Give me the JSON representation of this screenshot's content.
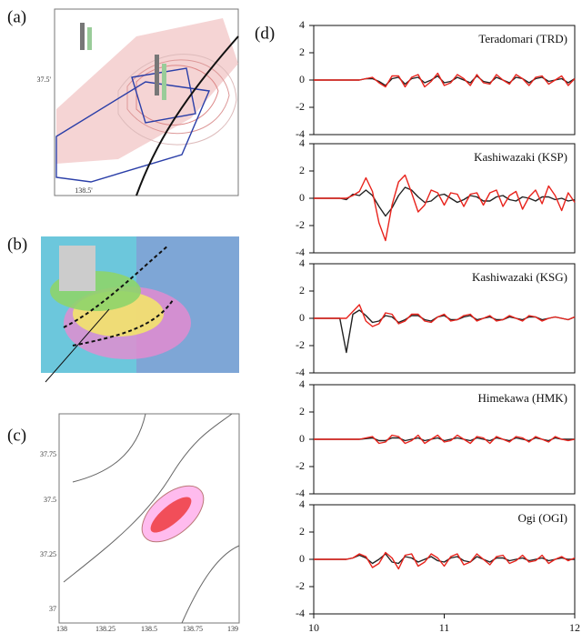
{
  "panels": {
    "a": {
      "label": "(a)",
      "lat_label": "37.5'",
      "lon_label": "138.5'"
    },
    "b": {
      "label": "(b)"
    },
    "c": {
      "label": "(c)",
      "lat_labels": [
        "37.75",
        "37.5",
        "37.25",
        "37"
      ],
      "lon_labels": [
        "138",
        "138.25",
        "138.5",
        "138.75",
        "139"
      ]
    },
    "d": {
      "label": "(d)"
    }
  },
  "chart_data": [
    {
      "type": "line",
      "title": "Teradomari (TRD)",
      "x": [
        10,
        10.05,
        10.1,
        10.15,
        10.2,
        10.25,
        10.3,
        10.35,
        10.4,
        10.45,
        10.5,
        10.55,
        10.6,
        10.65,
        10.7,
        10.75,
        10.8,
        10.85,
        10.9,
        10.95,
        11,
        11.05,
        11.1,
        11.15,
        11.2,
        11.25,
        11.3,
        11.35,
        11.4,
        11.45,
        11.5,
        11.55,
        11.6,
        11.65,
        11.7,
        11.75,
        11.8,
        11.85,
        11.9,
        11.95,
        12
      ],
      "xlim": [
        10,
        12
      ],
      "ylim": [
        -4,
        4
      ],
      "yticks": [
        4,
        2,
        0,
        -2,
        -4
      ],
      "series": [
        {
          "color": "#222222",
          "values": [
            0,
            0,
            0,
            0,
            0,
            0,
            0,
            0,
            0.1,
            0.1,
            -0.1,
            -0.4,
            0.1,
            0.2,
            -0.3,
            0.1,
            0.2,
            -0.2,
            0,
            0.3,
            -0.2,
            -0.1,
            0.2,
            0,
            -0.2,
            0.3,
            -0.1,
            -0.2,
            0.2,
            0,
            -0.2,
            0.2,
            0.1,
            -0.2,
            0.1,
            0.2,
            -0.1,
            0,
            0.1,
            -0.2,
            0.1
          ]
        },
        {
          "color": "#e8231c",
          "values": [
            0,
            0,
            0,
            0,
            0,
            0,
            0,
            0,
            0.1,
            0.2,
            -0.2,
            -0.5,
            0.3,
            0.3,
            -0.5,
            0.2,
            0.4,
            -0.5,
            -0.1,
            0.5,
            -0.4,
            -0.2,
            0.4,
            0.1,
            -0.4,
            0.4,
            -0.2,
            -0.3,
            0.4,
            0,
            -0.3,
            0.4,
            0.1,
            -0.4,
            0.2,
            0.3,
            -0.3,
            0,
            0.3,
            -0.4,
            0.1
          ]
        }
      ]
    },
    {
      "type": "line",
      "title": "Kashiwazaki (KSP)",
      "x": [
        10,
        10.05,
        10.1,
        10.15,
        10.2,
        10.25,
        10.3,
        10.35,
        10.4,
        10.45,
        10.5,
        10.55,
        10.6,
        10.65,
        10.7,
        10.75,
        10.8,
        10.85,
        10.9,
        10.95,
        11,
        11.05,
        11.1,
        11.15,
        11.2,
        11.25,
        11.3,
        11.35,
        11.4,
        11.45,
        11.5,
        11.55,
        11.6,
        11.65,
        11.7,
        11.75,
        11.8,
        11.85,
        11.9,
        11.95,
        12
      ],
      "xlim": [
        10,
        12
      ],
      "ylim": [
        -4,
        4
      ],
      "yticks": [
        4,
        2,
        0,
        -2,
        -4
      ],
      "series": [
        {
          "color": "#222222",
          "values": [
            0,
            0,
            0,
            0,
            0,
            -0.1,
            0.3,
            0.2,
            0.6,
            0.2,
            -0.6,
            -1.3,
            -0.7,
            0.2,
            0.8,
            0.6,
            0.1,
            -0.3,
            -0.2,
            0.2,
            0.3,
            0,
            -0.3,
            -0.1,
            0.2,
            0.1,
            -0.2,
            -0.2,
            0.1,
            0.2,
            -0.1,
            -0.2,
            0.1,
            0,
            -0.2,
            0.1,
            0.1,
            -0.1,
            0,
            -0.2,
            -0.1
          ]
        },
        {
          "color": "#e8231c",
          "values": [
            0,
            0,
            0,
            0,
            0,
            0,
            0.2,
            0.5,
            1.5,
            0.5,
            -1.8,
            -3.1,
            -0.5,
            1.2,
            1.7,
            0.4,
            -1,
            -0.5,
            0.6,
            0.4,
            -0.5,
            0.4,
            0.3,
            -0.6,
            0.3,
            0.4,
            -0.5,
            0.4,
            0.6,
            -0.6,
            0.2,
            0.5,
            -0.8,
            0.1,
            0.6,
            -0.4,
            0.9,
            0.2,
            -0.9,
            0.4,
            -0.3
          ]
        }
      ]
    },
    {
      "type": "line",
      "title": "Kashiwazaki (KSG)",
      "x": [
        10,
        10.05,
        10.1,
        10.15,
        10.2,
        10.25,
        10.3,
        10.35,
        10.4,
        10.45,
        10.5,
        10.55,
        10.6,
        10.65,
        10.7,
        10.75,
        10.8,
        10.85,
        10.9,
        10.95,
        11,
        11.05,
        11.1,
        11.15,
        11.2,
        11.25,
        11.3,
        11.35,
        11.4,
        11.45,
        11.5,
        11.55,
        11.6,
        11.65,
        11.7,
        11.75,
        11.8,
        11.85,
        11.9,
        11.95,
        12
      ],
      "xlim": [
        10,
        12
      ],
      "ylim": [
        -4,
        4
      ],
      "yticks": [
        4,
        2,
        0,
        -2,
        -4
      ],
      "series": [
        {
          "color": "#222222",
          "values": [
            0,
            0,
            0,
            0,
            0,
            -2.5,
            0.3,
            0.6,
            0.2,
            -0.3,
            -0.2,
            0.2,
            0.1,
            -0.3,
            -0.1,
            0.2,
            0.2,
            -0.1,
            -0.2,
            0.1,
            0.2,
            -0.1,
            -0.1,
            0.1,
            0.2,
            -0.1,
            0,
            0.1,
            -0.1,
            -0.1,
            0.1,
            0,
            -0.1,
            0.1,
            0.1,
            -0.1,
            0,
            0.1,
            0,
            -0.1,
            0.1
          ]
        },
        {
          "color": "#e8231c",
          "values": [
            0,
            0,
            0,
            0,
            0,
            0,
            0.5,
            1,
            -0.2,
            -0.6,
            -0.4,
            0.4,
            0.3,
            -0.4,
            -0.2,
            0.3,
            0.3,
            -0.2,
            -0.3,
            0.1,
            0.3,
            -0.2,
            -0.1,
            0.2,
            0.3,
            -0.2,
            0,
            0.2,
            -0.2,
            -0.1,
            0.2,
            0,
            -0.2,
            0.2,
            0.1,
            -0.2,
            0,
            0.1,
            0,
            -0.1,
            0.1
          ]
        }
      ]
    },
    {
      "type": "line",
      "title": "Himekawa (HMK)",
      "x": [
        10,
        10.05,
        10.1,
        10.15,
        10.2,
        10.25,
        10.3,
        10.35,
        10.4,
        10.45,
        10.5,
        10.55,
        10.6,
        10.65,
        10.7,
        10.75,
        10.8,
        10.85,
        10.9,
        10.95,
        11,
        11.05,
        11.1,
        11.15,
        11.2,
        11.25,
        11.3,
        11.35,
        11.4,
        11.45,
        11.5,
        11.55,
        11.6,
        11.65,
        11.7,
        11.75,
        11.8,
        11.85,
        11.9,
        11.95,
        12
      ],
      "xlim": [
        10,
        12
      ],
      "ylim": [
        -4,
        4
      ],
      "yticks": [
        4,
        2,
        0,
        -2,
        -4
      ],
      "series": [
        {
          "color": "#222222",
          "values": [
            0,
            0,
            0,
            0,
            0,
            0,
            0,
            0,
            0.05,
            0.1,
            -0.1,
            -0.1,
            0.1,
            0.1,
            -0.1,
            0,
            0.1,
            -0.1,
            0,
            0.1,
            -0.1,
            0,
            0.1,
            0,
            -0.1,
            0.1,
            0,
            -0.1,
            0.1,
            0,
            -0.1,
            0.1,
            0,
            -0.1,
            0.1,
            0,
            -0.1,
            0.1,
            0,
            0,
            0
          ]
        },
        {
          "color": "#e8231c",
          "values": [
            0,
            0,
            0,
            0,
            0,
            0,
            0,
            0,
            0.1,
            0.2,
            -0.3,
            -0.2,
            0.3,
            0.2,
            -0.3,
            -0.1,
            0.3,
            -0.3,
            0,
            0.3,
            -0.2,
            -0.1,
            0.3,
            0,
            -0.3,
            0.2,
            0.1,
            -0.3,
            0.2,
            0,
            -0.2,
            0.2,
            0.1,
            -0.2,
            0.2,
            0,
            -0.2,
            0.2,
            0,
            -0.1,
            0
          ]
        }
      ]
    },
    {
      "type": "line",
      "title": "Ogi (OGI)",
      "x": [
        10,
        10.05,
        10.1,
        10.15,
        10.2,
        10.25,
        10.3,
        10.35,
        10.4,
        10.45,
        10.5,
        10.55,
        10.6,
        10.65,
        10.7,
        10.75,
        10.8,
        10.85,
        10.9,
        10.95,
        11,
        11.05,
        11.1,
        11.15,
        11.2,
        11.25,
        11.3,
        11.35,
        11.4,
        11.45,
        11.5,
        11.55,
        11.6,
        11.65,
        11.7,
        11.75,
        11.8,
        11.85,
        11.9,
        11.95,
        12
      ],
      "xlim": [
        10,
        12
      ],
      "ylim": [
        -4,
        4
      ],
      "yticks": [
        4,
        2,
        0,
        -2,
        -4
      ],
      "xticks": [
        10,
        11,
        12
      ],
      "series": [
        {
          "color": "#222222",
          "values": [
            0,
            0,
            0,
            0,
            0,
            0,
            0.1,
            0.3,
            0.1,
            -0.3,
            0,
            0.4,
            -0.2,
            -0.3,
            0.2,
            0.1,
            -0.2,
            0,
            0.2,
            -0.1,
            -0.2,
            0.1,
            0.2,
            -0.1,
            -0.2,
            0.2,
            0,
            -0.2,
            0.1,
            0.1,
            -0.1,
            0,
            0.1,
            -0.1,
            0,
            0.1,
            -0.1,
            0,
            0.1,
            0,
            0
          ]
        },
        {
          "color": "#e8231c",
          "values": [
            0,
            0,
            0,
            0,
            0,
            0,
            0.1,
            0.4,
            0.2,
            -0.6,
            -0.3,
            0.5,
            0.1,
            -0.7,
            0.3,
            0.4,
            -0.5,
            -0.2,
            0.4,
            0.1,
            -0.5,
            0.2,
            0.4,
            -0.4,
            -0.2,
            0.4,
            0,
            -0.4,
            0.2,
            0.3,
            -0.3,
            -0.1,
            0.3,
            -0.2,
            -0.1,
            0.3,
            -0.3,
            0,
            0.2,
            -0.1,
            0.1
          ]
        }
      ]
    }
  ]
}
